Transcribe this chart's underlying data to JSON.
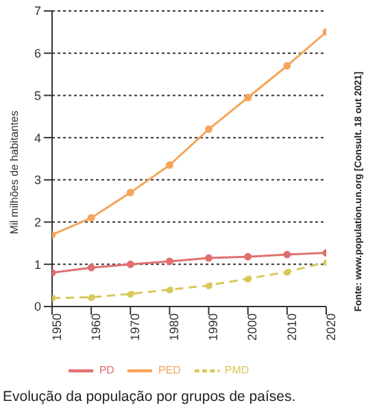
{
  "chart_data": {
    "type": "line",
    "title": "Evolução da população por grupos de países.",
    "ylabel": "Mil milhões de habitantes",
    "annotations": [
      "Fonte: www.population.un.org [Consult. 18 out 2021]"
    ],
    "x": [
      1950,
      1960,
      1970,
      1980,
      1990,
      2000,
      2010,
      2020
    ],
    "series": [
      {
        "name": "PD",
        "color": "#e07070",
        "values": [
          0.8,
          0.92,
          1.0,
          1.07,
          1.15,
          1.18,
          1.23,
          1.27
        ]
      },
      {
        "name": "PED",
        "color": "#f5a55a",
        "values": [
          1.7,
          2.1,
          2.7,
          3.35,
          4.2,
          4.95,
          5.7,
          6.5
        ]
      },
      {
        "name": "PMD",
        "color": "#d8c85a",
        "line_style": "dashed",
        "values": [
          0.2,
          0.22,
          0.3,
          0.4,
          0.5,
          0.66,
          0.82,
          1.05
        ]
      }
    ],
    "xlim": [
      1950,
      2020
    ],
    "xticks": [
      1950,
      1960,
      1970,
      1980,
      1990,
      2000,
      2010,
      2020
    ],
    "ylim": [
      0,
      7
    ],
    "yticks": [
      0,
      1,
      2,
      3,
      4,
      5,
      6,
      7
    ],
    "grid": "y",
    "legend": "bottom",
    "marker": "circle",
    "line_style": "solid"
  }
}
